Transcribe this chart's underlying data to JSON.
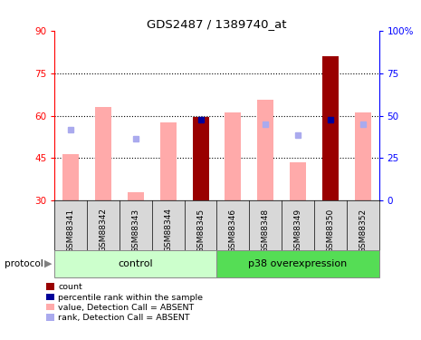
{
  "title": "GDS2487 / 1389740_at",
  "samples": [
    "GSM88341",
    "GSM88342",
    "GSM88343",
    "GSM88344",
    "GSM88345",
    "GSM88346",
    "GSM88348",
    "GSM88349",
    "GSM88350",
    "GSM88352"
  ],
  "value_absent": [
    46.5,
    63.0,
    33.0,
    57.5,
    null,
    61.0,
    65.5,
    43.5,
    null,
    61.0
  ],
  "rank_absent_left": [
    55,
    null,
    52,
    null,
    null,
    null,
    57,
    53,
    null,
    57
  ],
  "count_value": [
    null,
    null,
    null,
    null,
    59.5,
    null,
    null,
    null,
    81.0,
    null
  ],
  "percentile_rank_left": [
    null,
    null,
    null,
    null,
    58.5,
    null,
    null,
    null,
    58.5,
    null
  ],
  "ylim_left": [
    30,
    90
  ],
  "yticks_left": [
    30,
    45,
    60,
    75,
    90
  ],
  "yticks_right_labels": [
    "0",
    "25",
    "50",
    "75",
    "100%"
  ],
  "yticks_right_vals": [
    0,
    25,
    50,
    75,
    100
  ],
  "grid_values": [
    45,
    60,
    75
  ],
  "color_count": "#990000",
  "color_percentile": "#000099",
  "color_value_absent": "#ffaaaa",
  "color_rank_absent": "#aaaaee",
  "control_color": "#ccffcc",
  "p38_color": "#55dd55",
  "legend_items": [
    {
      "label": "count",
      "color": "#990000"
    },
    {
      "label": "percentile rank within the sample",
      "color": "#000099"
    },
    {
      "label": "value, Detection Call = ABSENT",
      "color": "#ffaaaa"
    },
    {
      "label": "rank, Detection Call = ABSENT",
      "color": "#aaaaee"
    }
  ]
}
